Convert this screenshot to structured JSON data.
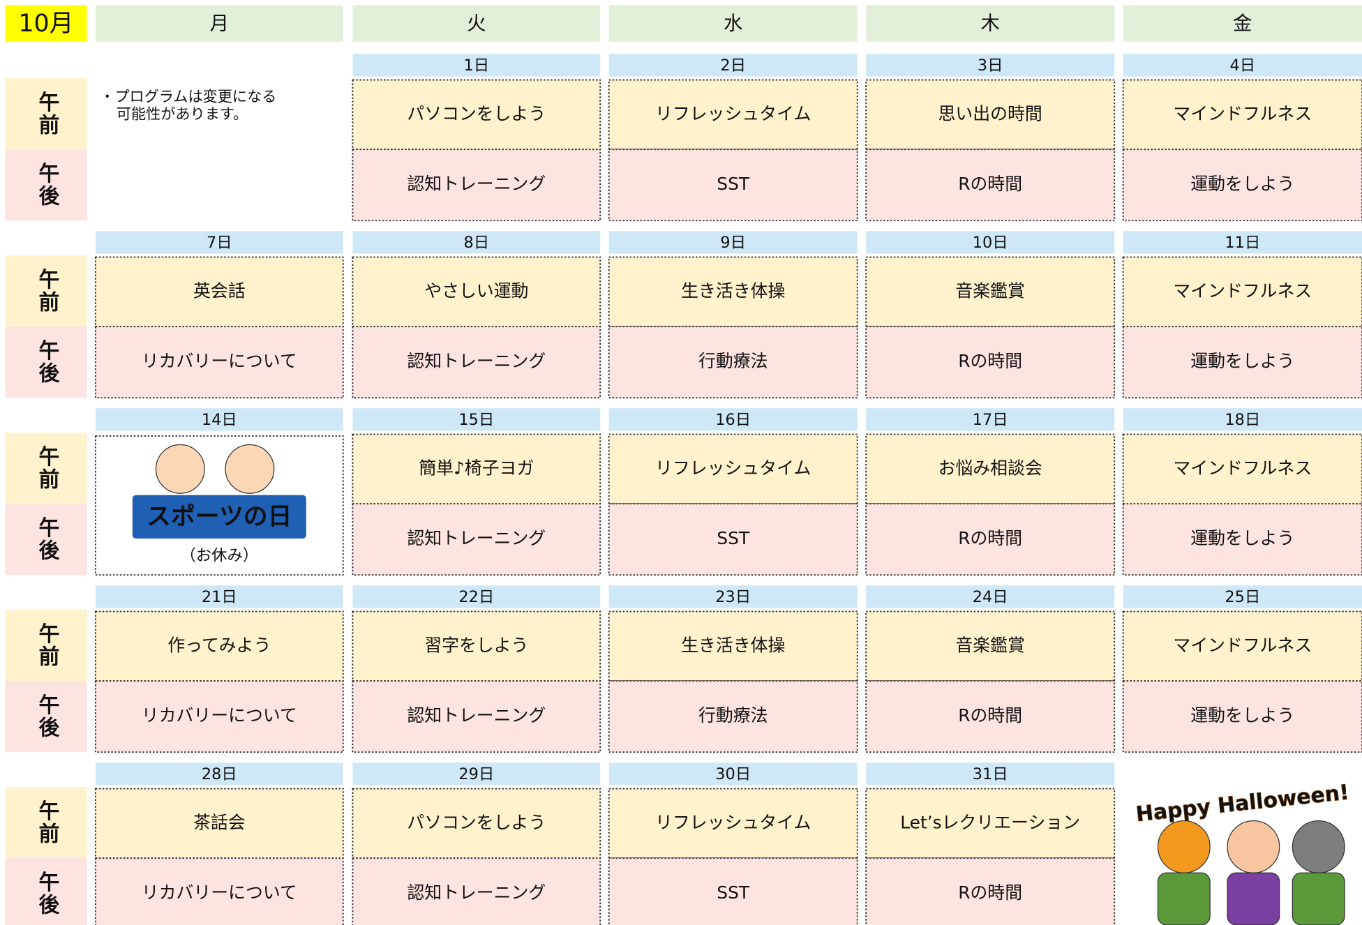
{
  "month": "10月",
  "weekdays": [
    "月",
    "火",
    "水",
    "木",
    "金"
  ],
  "period_labels": {
    "am": "午前",
    "pm": "午後"
  },
  "note_lines": [
    "・プログラムは変更になる",
    "可能性があります。"
  ],
  "weeks": [
    {
      "days": [
        null,
        {
          "date": "1日",
          "am": "パソコンをしよう",
          "pm": "認知トレーニング"
        },
        {
          "date": "2日",
          "am": "リフレッシュタイム",
          "pm": "SST"
        },
        {
          "date": "3日",
          "am": "思い出の時間",
          "pm": "Rの時間"
        },
        {
          "date": "4日",
          "am": "マインドフルネス",
          "pm": "運動をしよう"
        }
      ]
    },
    {
      "days": [
        {
          "date": "7日",
          "am": "英会話",
          "pm": "リカバリーについて"
        },
        {
          "date": "8日",
          "am": "やさしい運動",
          "pm": "認知トレーニング"
        },
        {
          "date": "9日",
          "am": "生き活き体操",
          "pm": "行動療法"
        },
        {
          "date": "10日",
          "am": "音楽鑑賞",
          "pm": "Rの時間"
        },
        {
          "date": "11日",
          "am": "マインドフルネス",
          "pm": "運動をしよう"
        }
      ]
    },
    {
      "days": [
        {
          "date": "14日",
          "sign": "スポーツの日",
          "caption": "（お休み）"
        },
        {
          "date": "15日",
          "am": "簡単♪椅子ヨガ",
          "pm": "認知トレーニング"
        },
        {
          "date": "16日",
          "am": "リフレッシュタイム",
          "pm": "SST"
        },
        {
          "date": "17日",
          "am": "お悩み相談会",
          "pm": "Rの時間"
        },
        {
          "date": "18日",
          "am": "マインドフルネス",
          "pm": "運動をしよう"
        }
      ]
    },
    {
      "days": [
        {
          "date": "21日",
          "am": "作ってみよう",
          "pm": "リカバリーについて"
        },
        {
          "date": "22日",
          "am": "習字をしよう",
          "pm": "認知トレーニング"
        },
        {
          "date": "23日",
          "am": "生き活き体操",
          "pm": "行動療法"
        },
        {
          "date": "24日",
          "am": "音楽鑑賞",
          "pm": "Rの時間"
        },
        {
          "date": "25日",
          "am": "マインドフルネス",
          "pm": "運動をしよう"
        }
      ]
    },
    {
      "days": [
        {
          "date": "28日",
          "am": "茶話会",
          "pm": "リカバリーについて"
        },
        {
          "date": "29日",
          "am": "パソコンをしよう",
          "pm": "認知トレーニング"
        },
        {
          "date": "30日",
          "am": "リフレッシュタイム",
          "pm": "SST"
        },
        {
          "date": "31日",
          "am": "Let’sレクリエーション",
          "pm": "Rの時間"
        },
        null
      ]
    }
  ],
  "halloween": "Happy Halloween!"
}
